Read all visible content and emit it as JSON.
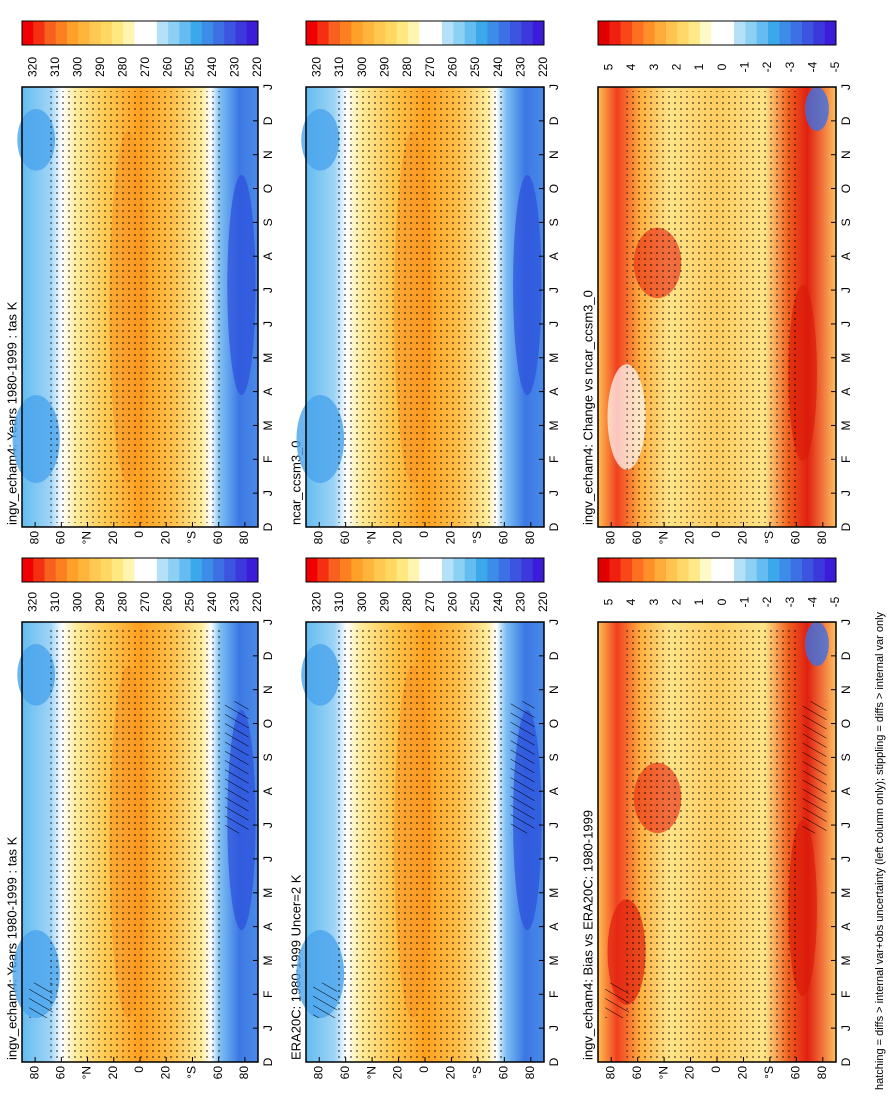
{
  "rows": [
    {
      "panels": [
        {
          "title": "ingv_echam4: Years 1980-1999 : tas K"
        },
        {
          "title": "ingv_echam4: Years 1980-1999 : tas K"
        }
      ],
      "colorbar": {
        "ticks": [
          "320",
          "310",
          "300",
          "290",
          "280",
          "270",
          "260",
          "250",
          "240",
          "230",
          "220"
        ],
        "colors": [
          "#f00000",
          "#f43010",
          "#f86020",
          "#fc8020",
          "#ffa028",
          "#ffb43c",
          "#ffc850",
          "#ffd864",
          "#ffe880",
          "#fff4b0",
          "#ffffff",
          "#ffffff",
          "#b4e0f8",
          "#8cd0f4",
          "#64bcf0",
          "#3ca8ec",
          "#3c8ce8",
          "#3c70e4",
          "#3c54e0",
          "#3c38dc",
          "#3c1cd8"
        ]
      }
    },
    {
      "panels": [
        {
          "title": "ERA20C: 1980-1999 Uncer=2 K"
        },
        {
          "title": "ncar_ccsm3_0"
        }
      ],
      "colorbar": {
        "ticks": [
          "320",
          "310",
          "300",
          "290",
          "280",
          "270",
          "260",
          "250",
          "240",
          "230",
          "220"
        ],
        "colors": [
          "#f00000",
          "#f43010",
          "#f86020",
          "#fc8020",
          "#ffa028",
          "#ffb43c",
          "#ffc850",
          "#ffd864",
          "#ffe880",
          "#fff4b0",
          "#ffffff",
          "#ffffff",
          "#b4e0f8",
          "#8cd0f4",
          "#64bcf0",
          "#3ca8ec",
          "#3c8ce8",
          "#3c70e4",
          "#3c54e0",
          "#3c38dc",
          "#3c1cd8"
        ]
      }
    },
    {
      "panels": [
        {
          "title": "ingv_echam4: Bias vs ERA20C: 1980-1999"
        },
        {
          "title": "ingv_echam4: Change vs ncar_ccsm3_0"
        }
      ],
      "colorbar": {
        "ticks": [
          "5",
          "4",
          "3",
          "2",
          "1",
          "0",
          "-1",
          "-2",
          "-3",
          "-4",
          "-5"
        ],
        "colors": [
          "#e00000",
          "#f02010",
          "#f84818",
          "#fc7020",
          "#ff9028",
          "#ffac3c",
          "#ffc450",
          "#ffd868",
          "#ffe888",
          "#fff8c8",
          "#ffffff",
          "#ffffff",
          "#b4e0f8",
          "#8cd0f4",
          "#64bcf0",
          "#3ca8ec",
          "#3c8ce8",
          "#3c70e4",
          "#3c54e0",
          "#3c38dc",
          "#3c1cd8"
        ]
      }
    }
  ],
  "lat_labels": [
    "80",
    "60",
    "°N",
    "20",
    "0",
    "20",
    "°S",
    "60",
    "80"
  ],
  "month_labels": [
    "D",
    "J",
    "F",
    "M",
    "A",
    "M",
    "J",
    "J",
    "A",
    "S",
    "O",
    "N",
    "D",
    "J"
  ],
  "footer": "hatching = diffs > internal var+obs uncertainty (left column only); stippling = diffs > internal var only"
}
